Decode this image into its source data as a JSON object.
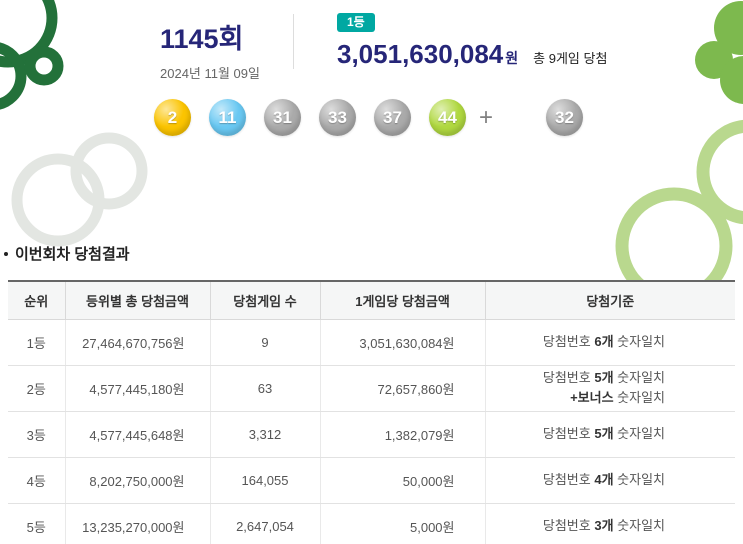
{
  "draw": {
    "round": "1145회",
    "date": "2024년 11월 09일",
    "rank_badge": "1등",
    "prize_amount": "3,051,630,084",
    "prize_unit": "원",
    "winner_note": "총 9게임 당첨"
  },
  "balls": {
    "numbers": [
      {
        "value": "2",
        "color": "#fbc400"
      },
      {
        "value": "11",
        "color": "#69c8f2"
      },
      {
        "value": "31",
        "color": "#aaaaaa"
      },
      {
        "value": "33",
        "color": "#aaaaaa"
      },
      {
        "value": "37",
        "color": "#aaaaaa"
      },
      {
        "value": "44",
        "color": "#b0d840"
      }
    ],
    "plus_sign": "+",
    "bonus": {
      "value": "32",
      "color": "#aaaaaa"
    }
  },
  "results": {
    "title": "이번회차 당첨결과",
    "table": {
      "headers": [
        "순위",
        "등위별 총 당첨금액",
        "당첨게임 수",
        "1게임당 당첨금액",
        "당첨기준"
      ],
      "rows": [
        {
          "rank": "1등",
          "total_amount": "27,464,670,756원",
          "game_count": "9",
          "per_game_amount": "3,051,630,084원",
          "criteria": [
            [
              {
                "t": "당첨번호 "
              },
              {
                "t": "6개",
                "strong": true
              },
              {
                "t": " 숫자일치"
              }
            ]
          ]
        },
        {
          "rank": "2등",
          "total_amount": "4,577,445,180원",
          "game_count": "63",
          "per_game_amount": "72,657,860원",
          "criteria": [
            [
              {
                "t": "당첨번호 "
              },
              {
                "t": "5개",
                "strong": true
              },
              {
                "t": " 숫자일치"
              }
            ],
            [
              {
                "t": "+보너스",
                "strong": true
              },
              {
                "t": " 숫자일치"
              }
            ]
          ]
        },
        {
          "rank": "3등",
          "total_amount": "4,577,445,648원",
          "game_count": "3,312",
          "per_game_amount": "1,382,079원",
          "criteria": [
            [
              {
                "t": "당첨번호 "
              },
              {
                "t": "5개",
                "strong": true
              },
              {
                "t": " 숫자일치"
              }
            ]
          ]
        },
        {
          "rank": "4등",
          "total_amount": "8,202,750,000원",
          "game_count": "164,055",
          "per_game_amount": "50,000원",
          "criteria": [
            [
              {
                "t": "당첨번호 "
              },
              {
                "t": "4개",
                "strong": true
              },
              {
                "t": " 숫자일치"
              }
            ]
          ]
        },
        {
          "rank": "5등",
          "total_amount": "13,235,270,000원",
          "game_count": "2,647,054",
          "per_game_amount": "5,000원",
          "criteria": [
            [
              {
                "t": "당첨번호 "
              },
              {
                "t": "3개",
                "strong": true
              },
              {
                "t": " 숫자일치"
              }
            ]
          ]
        }
      ]
    }
  },
  "colors": {
    "accent_navy": "#262678",
    "badge_teal": "#00a8a2",
    "ball_yellow": "#fbc400",
    "ball_blue": "#69c8f2",
    "ball_gray": "#aaaaaa",
    "ball_green": "#b0d840"
  }
}
